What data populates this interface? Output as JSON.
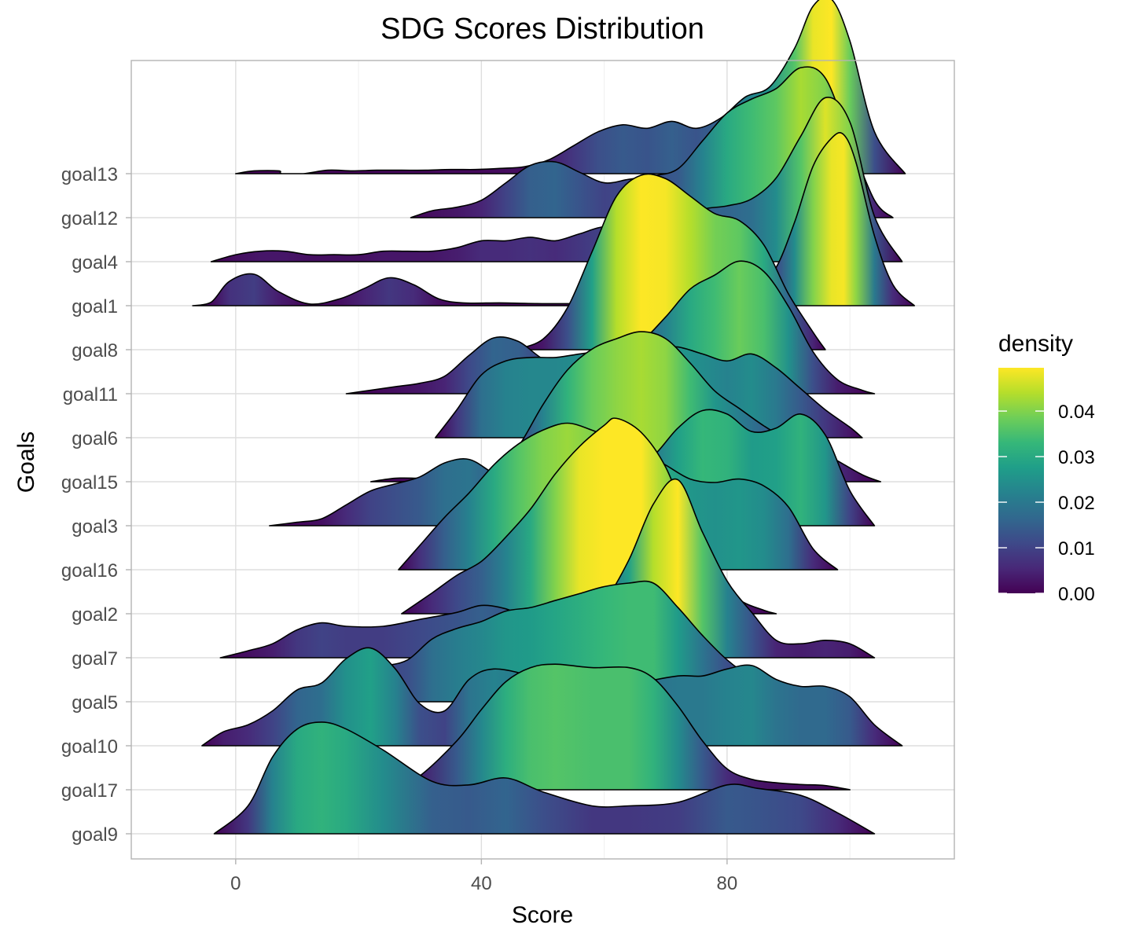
{
  "chart_data": {
    "type": "ridgeline",
    "title": "SDG Scores Distribution",
    "xlabel": "Score",
    "ylabel": "Goals",
    "xlim": [
      -17,
      117
    ],
    "x_ticks": [
      0,
      40,
      80
    ],
    "x_minor_ticks": [
      -20,
      20,
      60,
      100
    ],
    "grid": true,
    "legend": {
      "title": "density",
      "position": "right",
      "labels": [
        "0.00",
        "0.01",
        "0.02",
        "0.03",
        "0.04"
      ],
      "values": [
        0.0,
        0.01,
        0.02,
        0.03,
        0.04
      ],
      "range": [
        0.0,
        0.0495
      ]
    },
    "color_scale": {
      "name": "viridis",
      "stops": [
        "#440154",
        "#482878",
        "#3e4989",
        "#31688e",
        "#26828e",
        "#1f9e89",
        "#35b779",
        "#6ece58",
        "#b5de2b",
        "#fde725"
      ]
    },
    "series": [
      {
        "name": "goal9",
        "x": [
          -3.5,
          2,
          6,
          10,
          14,
          18,
          24,
          32,
          38,
          44,
          50,
          58,
          64,
          72,
          80,
          85,
          92,
          98,
          104
        ],
        "y": [
          0,
          0.008,
          0.022,
          0.03,
          0.032,
          0.03,
          0.024,
          0.015,
          0.014,
          0.016,
          0.012,
          0.008,
          0.008,
          0.009,
          0.014,
          0.013,
          0.011,
          0.006,
          0
        ]
      },
      {
        "name": "goal17",
        "x": [
          25.5,
          30,
          36,
          40,
          44,
          48,
          52,
          58,
          64,
          68,
          72,
          76,
          80,
          84,
          88,
          92,
          96,
          100
        ],
        "y": [
          0,
          0.004,
          0.014,
          0.023,
          0.031,
          0.035,
          0.036,
          0.035,
          0.035,
          0.032,
          0.024,
          0.014,
          0.006,
          0.003,
          0.002,
          0.0015,
          0.0012,
          0
        ]
      },
      {
        "name": "goal10",
        "x": [
          -5.5,
          -2,
          2,
          6,
          10,
          14,
          18,
          22,
          26,
          30,
          34,
          38,
          42,
          48,
          54,
          60,
          66,
          72,
          76,
          80,
          84,
          88,
          92,
          96,
          100,
          104,
          108.5
        ],
        "y": [
          0,
          0.004,
          0.006,
          0.01,
          0.016,
          0.018,
          0.025,
          0.028,
          0.022,
          0.012,
          0.01,
          0.019,
          0.022,
          0.02,
          0.016,
          0.015,
          0.018,
          0.02,
          0.02,
          0.022,
          0.023,
          0.019,
          0.017,
          0.017,
          0.014,
          0.006,
          0
        ]
      },
      {
        "name": "goal5",
        "x": [
          12.5,
          16,
          20,
          24,
          28,
          32,
          36,
          40,
          44,
          48,
          52,
          56,
          60,
          64,
          68,
          72,
          76,
          80,
          84,
          88,
          92,
          96
        ],
        "y": [
          0,
          0.004,
          0.007,
          0.01,
          0.012,
          0.018,
          0.021,
          0.023,
          0.026,
          0.027,
          0.029,
          0.031,
          0.033,
          0.034,
          0.034,
          0.027,
          0.019,
          0.012,
          0.007,
          0.004,
          0.002,
          0
        ]
      },
      {
        "name": "goal7",
        "x": [
          -2.5,
          2,
          6,
          10,
          14,
          18,
          24,
          30,
          36,
          40,
          44,
          48,
          52,
          56,
          60,
          64,
          68,
          72,
          76,
          80,
          84,
          88,
          92,
          96,
          100,
          104
        ],
        "y": [
          0,
          0.002,
          0.004,
          0.008,
          0.01,
          0.009,
          0.009,
          0.011,
          0.013,
          0.015,
          0.014,
          0.011,
          0.01,
          0.01,
          0.016,
          0.028,
          0.044,
          0.051,
          0.036,
          0.022,
          0.013,
          0.005,
          0.004,
          0.005,
          0.004,
          0
        ]
      },
      {
        "name": "goal2",
        "x": [
          27,
          32,
          36,
          40,
          44,
          48,
          52,
          56,
          60,
          62,
          66,
          70,
          74,
          78,
          82,
          86,
          88
        ],
        "y": [
          0,
          0.006,
          0.011,
          0.015,
          0.022,
          0.03,
          0.04,
          0.048,
          0.054,
          0.056,
          0.052,
          0.042,
          0.025,
          0.011,
          0.004,
          0.001,
          0
        ]
      },
      {
        "name": "goal16",
        "x": [
          26.5,
          30,
          34,
          38,
          42,
          46,
          50,
          54,
          58,
          62,
          66,
          70,
          74,
          78,
          82,
          86,
          90,
          94,
          98
        ],
        "y": [
          0,
          0.007,
          0.015,
          0.022,
          0.03,
          0.036,
          0.04,
          0.042,
          0.04,
          0.037,
          0.034,
          0.03,
          0.026,
          0.025,
          0.026,
          0.024,
          0.018,
          0.006,
          0
        ]
      },
      {
        "name": "goal3",
        "x": [
          5.5,
          10,
          14,
          18,
          22,
          26,
          30,
          34,
          38,
          42,
          46,
          52,
          58,
          64,
          68,
          72,
          76,
          80,
          84,
          88,
          92,
          96,
          100,
          104
        ],
        "y": [
          0,
          0.001,
          0.002,
          0.006,
          0.01,
          0.012,
          0.014,
          0.018,
          0.019,
          0.015,
          0.012,
          0.012,
          0.013,
          0.016,
          0.02,
          0.028,
          0.033,
          0.032,
          0.027,
          0.028,
          0.032,
          0.026,
          0.01,
          0
        ]
      },
      {
        "name": "goal15",
        "x": [
          22,
          26,
          30,
          34,
          38,
          42,
          46,
          50,
          54,
          58,
          62,
          66,
          70,
          74,
          78,
          82,
          86,
          90,
          94,
          98,
          102,
          105
        ],
        "y": [
          0,
          0.001,
          0.001,
          0.001,
          0.001,
          0.002,
          0.01,
          0.022,
          0.032,
          0.038,
          0.041,
          0.043,
          0.041,
          0.034,
          0.026,
          0.021,
          0.016,
          0.012,
          0.01,
          0.006,
          0.002,
          0
        ]
      },
      {
        "name": "goal6",
        "x": [
          32.5,
          36,
          40,
          44,
          48,
          52,
          56,
          60,
          64,
          68,
          72,
          76,
          80,
          84,
          88,
          92,
          96,
          100,
          102
        ],
        "y": [
          0,
          0.008,
          0.018,
          0.022,
          0.023,
          0.023,
          0.024,
          0.025,
          0.026,
          0.026,
          0.026,
          0.024,
          0.022,
          0.024,
          0.02,
          0.014,
          0.008,
          0.003,
          0
        ]
      },
      {
        "name": "goal11",
        "x": [
          18,
          22,
          26,
          30,
          34,
          38,
          42,
          46,
          50,
          54,
          58,
          62,
          66,
          70,
          74,
          78,
          82,
          86,
          90,
          94,
          98,
          102,
          104
        ],
        "y": [
          0,
          0.001,
          0.002,
          0.003,
          0.005,
          0.011,
          0.016,
          0.015,
          0.01,
          0.008,
          0.01,
          0.012,
          0.015,
          0.022,
          0.03,
          0.034,
          0.038,
          0.035,
          0.025,
          0.012,
          0.004,
          0.001,
          0
        ]
      },
      {
        "name": "goal8",
        "x": [
          45.5,
          50,
          54,
          58,
          62,
          66,
          70,
          74,
          78,
          82,
          86,
          90,
          94,
          96
        ],
        "y": [
          0,
          0.003,
          0.012,
          0.028,
          0.044,
          0.05,
          0.049,
          0.044,
          0.039,
          0.037,
          0.03,
          0.016,
          0.005,
          0
        ]
      },
      {
        "name": "goal1",
        "x": [
          -7,
          -4,
          -1,
          3,
          7,
          12,
          17,
          21,
          25,
          29,
          33,
          37,
          43,
          49,
          55,
          61,
          67,
          73,
          79,
          85,
          88,
          91,
          94,
          97,
          99,
          101,
          104,
          107,
          110.5
        ],
        "y": [
          0,
          0.001,
          0.007,
          0.009,
          0.004,
          0.0005,
          0.002,
          0.005,
          0.008,
          0.006,
          0.002,
          0.0008,
          0.0008,
          0.0006,
          0.0006,
          0.001,
          0.002,
          0.003,
          0.004,
          0.006,
          0.011,
          0.024,
          0.04,
          0.048,
          0.049,
          0.041,
          0.02,
          0.006,
          0
        ]
      },
      {
        "name": "goal4",
        "x": [
          -4,
          0,
          4,
          8,
          12,
          16,
          20,
          24,
          28,
          32,
          36,
          40,
          44,
          48,
          52,
          56,
          60,
          64,
          68,
          72,
          76,
          80,
          84,
          88,
          92,
          96,
          100,
          104,
          108.5
        ],
        "y": [
          0,
          0.002,
          0.003,
          0.003,
          0.002,
          0.002,
          0.002,
          0.003,
          0.003,
          0.003,
          0.004,
          0.006,
          0.006,
          0.007,
          0.006,
          0.008,
          0.01,
          0.009,
          0.01,
          0.012,
          0.015,
          0.016,
          0.018,
          0.024,
          0.036,
          0.047,
          0.04,
          0.013,
          0
        ]
      },
      {
        "name": "goal12",
        "x": [
          28.5,
          32,
          36,
          40,
          44,
          48,
          52,
          56,
          60,
          64,
          68,
          72,
          76,
          80,
          84,
          88,
          92,
          96,
          100,
          104,
          107
        ],
        "y": [
          0,
          0.002,
          0.003,
          0.005,
          0.01,
          0.015,
          0.016,
          0.013,
          0.01,
          0.011,
          0.012,
          0.014,
          0.022,
          0.03,
          0.034,
          0.037,
          0.043,
          0.04,
          0.022,
          0.005,
          0
        ]
      },
      {
        "name": "goal13",
        "x": [
          0,
          3,
          7,
          7.5,
          11,
          15,
          19,
          23,
          27,
          31,
          35,
          39,
          43,
          47,
          51,
          55,
          59,
          63,
          67,
          71,
          75,
          79,
          83,
          87,
          91,
          94,
          97,
          100,
          104,
          109
        ],
        "y": [
          0,
          0.0008,
          0.0008,
          0.0,
          0.0,
          0.001,
          0.0008,
          0.001,
          0.001,
          0.001,
          0.0012,
          0.0012,
          0.0015,
          0.002,
          0.004,
          0.008,
          0.012,
          0.014,
          0.013,
          0.015,
          0.013,
          0.016,
          0.022,
          0.025,
          0.036,
          0.048,
          0.05,
          0.038,
          0.012,
          0
        ]
      }
    ]
  }
}
